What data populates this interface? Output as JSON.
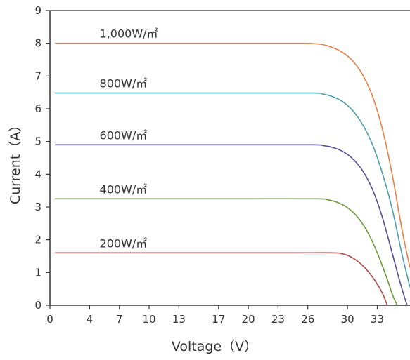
{
  "chart_data": {
    "type": "line",
    "title": "",
    "xlabel": "Voltage（V）",
    "ylabel": "Current（A）",
    "xlim": [
      0,
      36.3
    ],
    "ylim": [
      0,
      9
    ],
    "x_ticks": [
      0,
      4,
      7,
      10,
      13,
      17,
      20,
      23,
      26,
      30,
      33
    ],
    "y_ticks": [
      0,
      1,
      2,
      3,
      4,
      5,
      6,
      7,
      8,
      9
    ],
    "grid": false,
    "legend": "none",
    "series": [
      {
        "name": "1,000W/㎡",
        "color": "#e0834a",
        "x": [
          0.5,
          5,
          10,
          15,
          20,
          25.5,
          26.5,
          27.5,
          28.5,
          29.5,
          30.5,
          31.5,
          32.5,
          33.5,
          34.5,
          35.5,
          36.3
        ],
        "y": [
          8.0,
          8.0,
          8.0,
          8.0,
          8.0,
          8.0,
          7.99,
          7.96,
          7.87,
          7.72,
          7.47,
          7.05,
          6.4,
          5.4,
          4.0,
          2.3,
          1.15
        ]
      },
      {
        "name": "800W/㎡",
        "color": "#4c9cad",
        "x": [
          0.5,
          5,
          10,
          15,
          20,
          26.5,
          27.5,
          28.5,
          29.5,
          30.5,
          31.5,
          32.5,
          33.5,
          34.5,
          35.5,
          36.3
        ],
        "y": [
          6.48,
          6.48,
          6.48,
          6.48,
          6.48,
          6.48,
          6.45,
          6.37,
          6.22,
          5.95,
          5.53,
          4.92,
          4.05,
          2.95,
          1.55,
          0.55
        ]
      },
      {
        "name": "600W/㎡",
        "color": "#5a4d94",
        "x": [
          0.5,
          5,
          10,
          15,
          20,
          26.5,
          27.5,
          28.5,
          29.5,
          30.5,
          31.5,
          32.5,
          33.5,
          34.5,
          35.3,
          36.0
        ],
        "y": [
          4.9,
          4.9,
          4.9,
          4.9,
          4.9,
          4.9,
          4.88,
          4.82,
          4.7,
          4.48,
          4.12,
          3.55,
          2.7,
          1.6,
          0.7,
          0.0
        ]
      },
      {
        "name": "400W/㎡",
        "color": "#6d9a3a",
        "x": [
          0.5,
          5,
          10,
          15,
          20,
          27.0,
          28.0,
          29.0,
          30.0,
          31.0,
          32.0,
          33.0,
          34.0,
          34.5,
          35.0
        ],
        "y": [
          3.25,
          3.25,
          3.25,
          3.25,
          3.25,
          3.25,
          3.22,
          3.14,
          2.98,
          2.7,
          2.25,
          1.6,
          0.8,
          0.35,
          0.0
        ]
      },
      {
        "name": "200W/㎡",
        "color": "#a8504a",
        "x": [
          0.5,
          5,
          10,
          15,
          20,
          25,
          28.5,
          29.5,
          30.5,
          31.5,
          32.5,
          33.5,
          34.0
        ],
        "y": [
          1.6,
          1.6,
          1.6,
          1.6,
          1.6,
          1.6,
          1.6,
          1.57,
          1.45,
          1.22,
          0.87,
          0.38,
          0.0
        ]
      }
    ],
    "labels": [
      {
        "text": "1,000W/㎡",
        "x": 5,
        "y": 8.0
      },
      {
        "text": "800W/㎡",
        "x": 5,
        "y": 6.48
      },
      {
        "text": "600W/㎡",
        "x": 5,
        "y": 4.9
      },
      {
        "text": "400W/㎡",
        "x": 5,
        "y": 3.25
      },
      {
        "text": "200W/㎡",
        "x": 5,
        "y": 1.6
      }
    ]
  }
}
